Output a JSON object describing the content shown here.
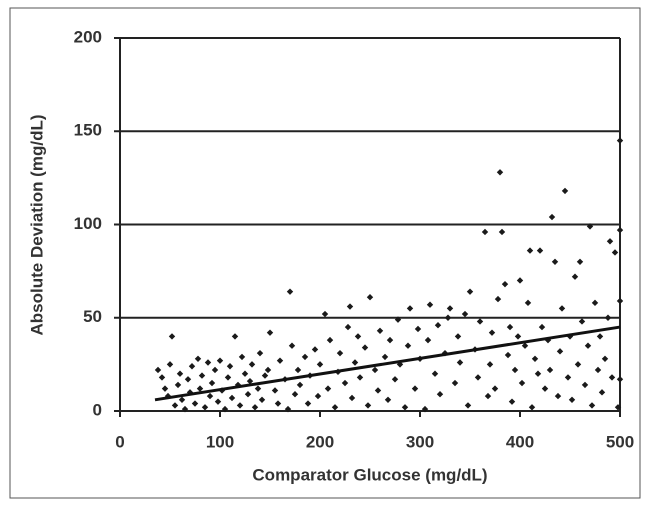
{
  "chart_data": {
    "type": "scatter",
    "x_label": "Comparator Glucose (mg/dL)",
    "y_label": "Absolute Deviation (mg/dL)",
    "xlim": [
      0,
      500
    ],
    "xticks": [
      0,
      100,
      200,
      300,
      400,
      500
    ],
    "ylim": [
      0,
      200
    ],
    "yticks": [
      0,
      50,
      100,
      150,
      200
    ],
    "grid": true,
    "color": "#1a1a1a",
    "x": [
      38,
      42,
      45,
      48,
      50,
      52,
      55,
      58,
      60,
      62,
      65,
      68,
      70,
      72,
      75,
      78,
      80,
      82,
      85,
      88,
      90,
      92,
      95,
      98,
      100,
      102,
      105,
      108,
      110,
      112,
      115,
      118,
      120,
      122,
      125,
      128,
      130,
      132,
      135,
      138,
      140,
      142,
      145,
      148,
      150,
      155,
      158,
      160,
      165,
      168,
      170,
      172,
      175,
      178,
      180,
      185,
      188,
      190,
      195,
      198,
      200,
      205,
      208,
      210,
      215,
      218,
      220,
      225,
      228,
      230,
      232,
      235,
      238,
      240,
      245,
      248,
      250,
      255,
      258,
      260,
      265,
      268,
      270,
      275,
      278,
      280,
      285,
      288,
      290,
      295,
      298,
      300,
      305,
      308,
      310,
      315,
      318,
      320,
      325,
      328,
      330,
      335,
      338,
      340,
      345,
      348,
      350,
      355,
      358,
      360,
      365,
      368,
      370,
      372,
      375,
      378,
      380,
      382,
      385,
      388,
      390,
      392,
      395,
      398,
      400,
      402,
      405,
      408,
      410,
      412,
      415,
      418,
      420,
      422,
      425,
      428,
      430,
      432,
      435,
      438,
      440,
      442,
      445,
      448,
      450,
      452,
      455,
      458,
      460,
      462,
      465,
      468,
      470,
      472,
      475,
      478,
      480,
      482,
      485,
      488,
      490,
      492,
      495,
      498,
      500,
      500,
      500,
      500
    ],
    "values": [
      22,
      18,
      12,
      8,
      25,
      40,
      3,
      14,
      20,
      6,
      1,
      17,
      10,
      24,
      4,
      28,
      12,
      19,
      2,
      26,
      8,
      15,
      22,
      5,
      27,
      11,
      1,
      18,
      24,
      7,
      40,
      14,
      3,
      29,
      20,
      9,
      16,
      25,
      2,
      12,
      31,
      6,
      19,
      22,
      42,
      11,
      4,
      27,
      17,
      1,
      64,
      35,
      9,
      22,
      14,
      29,
      4,
      19,
      33,
      8,
      25,
      52,
      12,
      38,
      2,
      21,
      31,
      15,
      45,
      56,
      7,
      26,
      40,
      18,
      34,
      3,
      61,
      22,
      11,
      43,
      29,
      6,
      38,
      17,
      49,
      25,
      2,
      35,
      55,
      12,
      44,
      28,
      1,
      38,
      57,
      20,
      46,
      9,
      31,
      50,
      55,
      15,
      40,
      26,
      52,
      3,
      64,
      33,
      18,
      48,
      96,
      8,
      25,
      42,
      12,
      60,
      128,
      96,
      68,
      30,
      45,
      5,
      22,
      40,
      70,
      15,
      35,
      58,
      86,
      2,
      28,
      20,
      86,
      45,
      12,
      38,
      22,
      104,
      80,
      8,
      32,
      55,
      118,
      18,
      40,
      6,
      72,
      25,
      80,
      48,
      14,
      35,
      99,
      3,
      58,
      22,
      40,
      10,
      28,
      50,
      91,
      18,
      85,
      2,
      97,
      59,
      17,
      145
    ],
    "trend_line": {
      "x": [
        35,
        500
      ],
      "values": [
        6,
        45
      ]
    }
  }
}
